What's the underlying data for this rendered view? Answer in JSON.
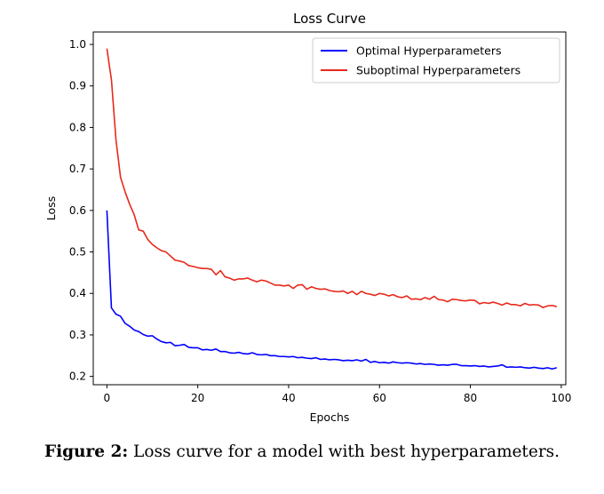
{
  "chart_data": {
    "type": "line",
    "title": "Loss Curve",
    "xlabel": "Epochs",
    "ylabel": "Loss",
    "xlim": [
      -3,
      101
    ],
    "ylim": [
      0.18,
      1.03
    ],
    "xticks": [
      0,
      20,
      40,
      60,
      80,
      100
    ],
    "yticks": [
      0.2,
      0.3,
      0.4,
      0.5,
      0.6,
      0.7,
      0.8,
      0.9,
      1.0
    ],
    "yticklabels": [
      "0.2",
      "0.3",
      "0.4",
      "0.5",
      "0.6",
      "0.7",
      "0.8",
      "0.9",
      "1.0"
    ],
    "grid": false,
    "legend_position": "top-right",
    "series": [
      {
        "name": "Optimal Hyperparameters",
        "color": "#0000ff",
        "x": [
          0,
          1,
          2,
          3,
          4,
          5,
          6,
          7,
          8,
          9,
          10,
          11,
          12,
          13,
          14,
          15,
          16,
          17,
          18,
          19,
          20,
          21,
          22,
          23,
          24,
          25,
          26,
          27,
          28,
          29,
          30,
          31,
          32,
          33,
          34,
          35,
          36,
          37,
          38,
          39,
          40,
          41,
          42,
          43,
          44,
          45,
          46,
          47,
          48,
          49,
          50,
          51,
          52,
          53,
          54,
          55,
          56,
          57,
          58,
          59,
          60,
          61,
          62,
          63,
          64,
          65,
          66,
          67,
          68,
          69,
          70,
          71,
          72,
          73,
          74,
          75,
          76,
          77,
          78,
          79,
          80,
          81,
          82,
          83,
          84,
          85,
          86,
          87,
          88,
          89,
          90,
          91,
          92,
          93,
          94,
          95,
          96,
          97,
          98,
          99
        ],
        "y": [
          0.6,
          0.365,
          0.35,
          0.345,
          0.328,
          0.321,
          0.312,
          0.308,
          0.301,
          0.297,
          0.298,
          0.29,
          0.284,
          0.281,
          0.282,
          0.274,
          0.275,
          0.277,
          0.27,
          0.269,
          0.269,
          0.264,
          0.265,
          0.263,
          0.266,
          0.26,
          0.26,
          0.257,
          0.256,
          0.258,
          0.255,
          0.254,
          0.257,
          0.253,
          0.252,
          0.253,
          0.25,
          0.25,
          0.248,
          0.248,
          0.247,
          0.248,
          0.245,
          0.246,
          0.244,
          0.243,
          0.245,
          0.241,
          0.242,
          0.24,
          0.241,
          0.24,
          0.238,
          0.239,
          0.238,
          0.24,
          0.237,
          0.241,
          0.234,
          0.236,
          0.233,
          0.234,
          0.232,
          0.235,
          0.233,
          0.232,
          0.233,
          0.232,
          0.23,
          0.231,
          0.229,
          0.23,
          0.229,
          0.227,
          0.228,
          0.227,
          0.229,
          0.229,
          0.226,
          0.226,
          0.225,
          0.226,
          0.224,
          0.225,
          0.223,
          0.224,
          0.225,
          0.228,
          0.222,
          0.223,
          0.222,
          0.223,
          0.221,
          0.22,
          0.222,
          0.22,
          0.219,
          0.221,
          0.218,
          0.221
        ]
      },
      {
        "name": "Suboptimal Hyperparameters",
        "color": "#e8291c",
        "x": [
          0,
          1,
          2,
          3,
          4,
          5,
          6,
          7,
          8,
          9,
          10,
          11,
          12,
          13,
          14,
          15,
          16,
          17,
          18,
          19,
          20,
          21,
          22,
          23,
          24,
          25,
          26,
          27,
          28,
          29,
          30,
          31,
          32,
          33,
          34,
          35,
          36,
          37,
          38,
          39,
          40,
          41,
          42,
          43,
          44,
          45,
          46,
          47,
          48,
          49,
          50,
          51,
          52,
          53,
          54,
          55,
          56,
          57,
          58,
          59,
          60,
          61,
          62,
          63,
          64,
          65,
          66,
          67,
          68,
          69,
          70,
          71,
          72,
          73,
          74,
          75,
          76,
          77,
          78,
          79,
          80,
          81,
          82,
          83,
          84,
          85,
          86,
          87,
          88,
          89,
          90,
          91,
          92,
          93,
          94,
          95,
          96,
          97,
          98,
          99
        ],
        "y": [
          0.99,
          0.915,
          0.77,
          0.68,
          0.645,
          0.615,
          0.59,
          0.553,
          0.55,
          0.53,
          0.518,
          0.51,
          0.503,
          0.5,
          0.49,
          0.48,
          0.478,
          0.475,
          0.467,
          0.465,
          0.462,
          0.46,
          0.46,
          0.458,
          0.445,
          0.455,
          0.44,
          0.437,
          0.432,
          0.435,
          0.435,
          0.437,
          0.432,
          0.428,
          0.432,
          0.43,
          0.425,
          0.42,
          0.42,
          0.418,
          0.42,
          0.412,
          0.42,
          0.421,
          0.41,
          0.416,
          0.412,
          0.41,
          0.411,
          0.407,
          0.405,
          0.404,
          0.406,
          0.4,
          0.405,
          0.397,
          0.405,
          0.4,
          0.398,
          0.395,
          0.4,
          0.398,
          0.394,
          0.397,
          0.392,
          0.39,
          0.394,
          0.386,
          0.387,
          0.385,
          0.39,
          0.386,
          0.393,
          0.385,
          0.384,
          0.38,
          0.386,
          0.385,
          0.383,
          0.382,
          0.384,
          0.383,
          0.375,
          0.378,
          0.376,
          0.379,
          0.376,
          0.372,
          0.377,
          0.373,
          0.373,
          0.37,
          0.376,
          0.372,
          0.373,
          0.372,
          0.366,
          0.37,
          0.371,
          0.368
        ]
      }
    ]
  },
  "caption": {
    "label": "Figure 2:",
    "text": " Loss curve for a model with best hyperparameters."
  }
}
